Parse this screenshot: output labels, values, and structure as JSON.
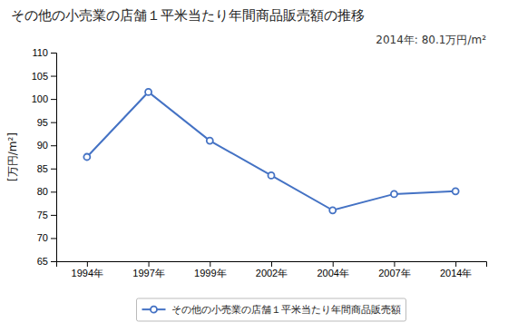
{
  "chart_data": {
    "type": "line",
    "title": "その他の小売業の店舗１平米当たり年間商品販売額の推移",
    "y_label": "[万円/m²]",
    "annotation": "2014年: 80.1万円/m²",
    "categories": [
      "1994年",
      "1997年",
      "1999年",
      "2002年",
      "2004年",
      "2007年",
      "2014年"
    ],
    "series": [
      {
        "name": "その他の小売業の店舗１平米当たり年間商品販売額",
        "color": "#4472C4",
        "values": [
          87.5,
          101.5,
          91.0,
          83.5,
          76.0,
          79.5,
          80.1
        ]
      }
    ],
    "ylim": [
      65,
      110
    ],
    "yticks": [
      65,
      70,
      75,
      80,
      85,
      90,
      95,
      100,
      105,
      110
    ],
    "grid": false,
    "legend": "bottom",
    "marker": "circle"
  }
}
